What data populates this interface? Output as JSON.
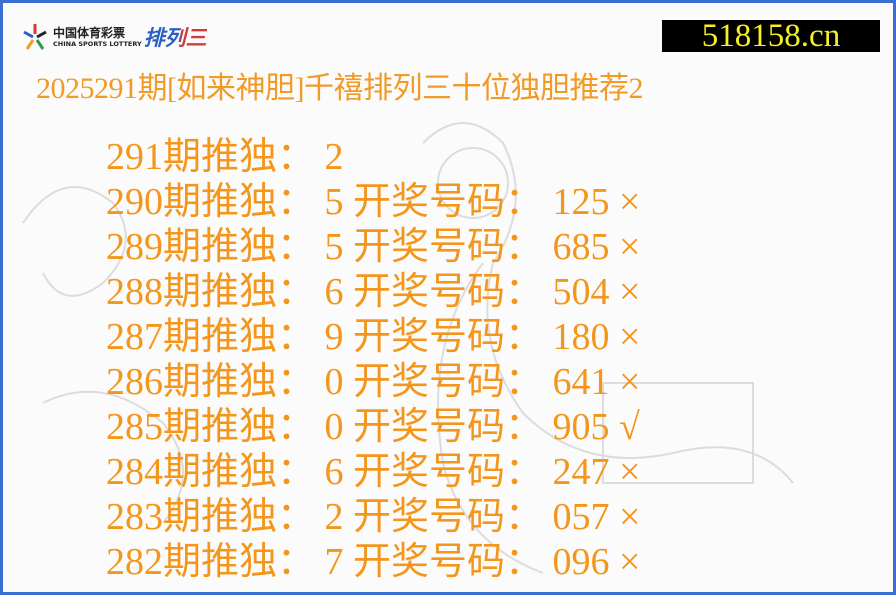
{
  "logo": {
    "cn": "中国体育彩票",
    "en": "CHINA SPORTS LOTTERY",
    "brand": "排列三"
  },
  "site": "518158.cn",
  "title": "2025291期[如来神胆]千禧排列三十位独胆推荐2",
  "rows": [
    {
      "text": "291期推独： 2"
    },
    {
      "text": "290期推独： 5 开奖号码： 125 ×"
    },
    {
      "text": "289期推独： 5 开奖号码： 685 ×"
    },
    {
      "text": "288期推独： 6 开奖号码： 504 ×"
    },
    {
      "text": "287期推独： 9 开奖号码： 180 ×"
    },
    {
      "text": "286期推独： 0 开奖号码： 641 ×"
    },
    {
      "text": "285期推独： 0 开奖号码： 905 √"
    },
    {
      "text": "284期推独： 6 开奖号码： 247 ×"
    },
    {
      "text": "283期推独： 2 开奖号码： 057 ×"
    },
    {
      "text": "282期推独： 7 开奖号码： 096 ×"
    }
  ],
  "colors": {
    "text": "#f4961c",
    "border": "#3b6fd2",
    "site_text": "#f5f021"
  }
}
